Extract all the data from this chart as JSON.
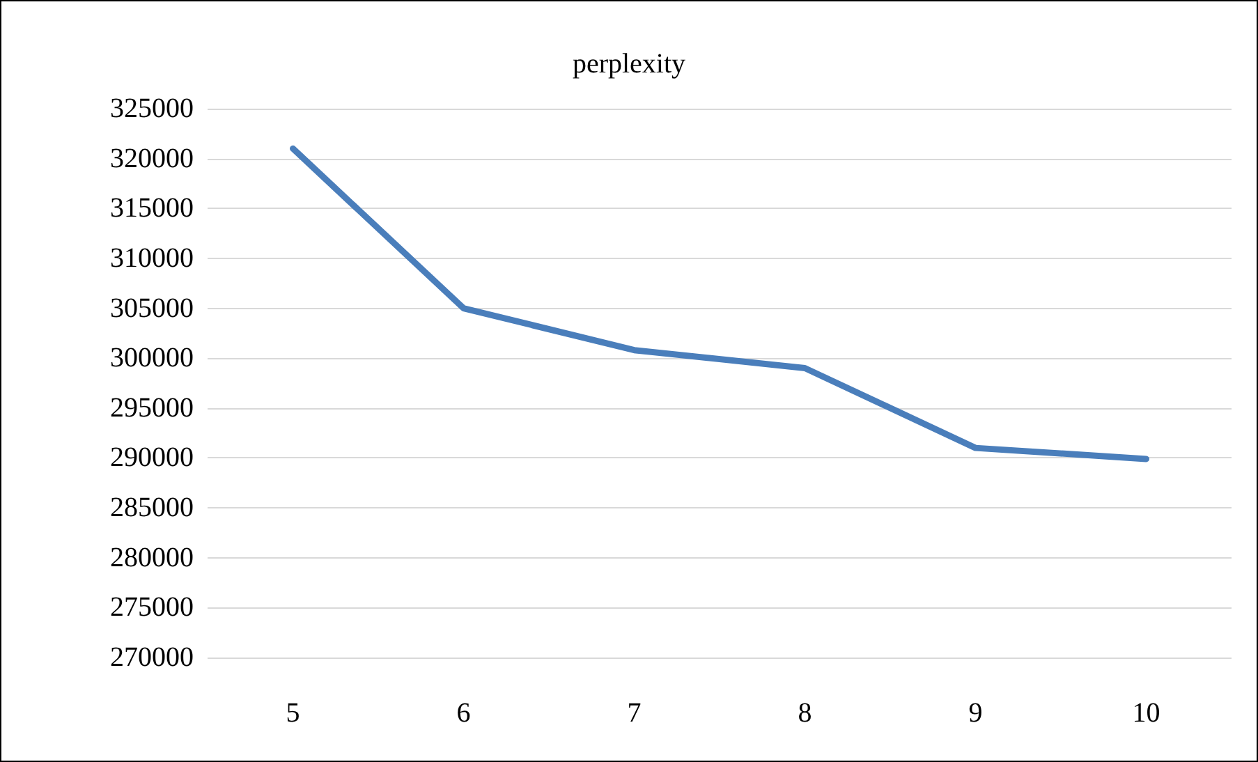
{
  "chart_data": {
    "type": "line",
    "title": "perplexity",
    "categories": [
      "5",
      "6",
      "7",
      "8",
      "9",
      "10"
    ],
    "series": [
      {
        "color": "#4a7ebb",
        "values": [
          321000,
          305000,
          300800,
          299000,
          291000,
          289900
        ]
      }
    ],
    "ylim": [
      270000,
      325000
    ],
    "yticks": [
      270000,
      275000,
      280000,
      285000,
      290000,
      295000,
      300000,
      305000,
      310000,
      315000,
      320000,
      325000
    ],
    "grid": "y",
    "marker": "none",
    "line_style": "solid"
  }
}
